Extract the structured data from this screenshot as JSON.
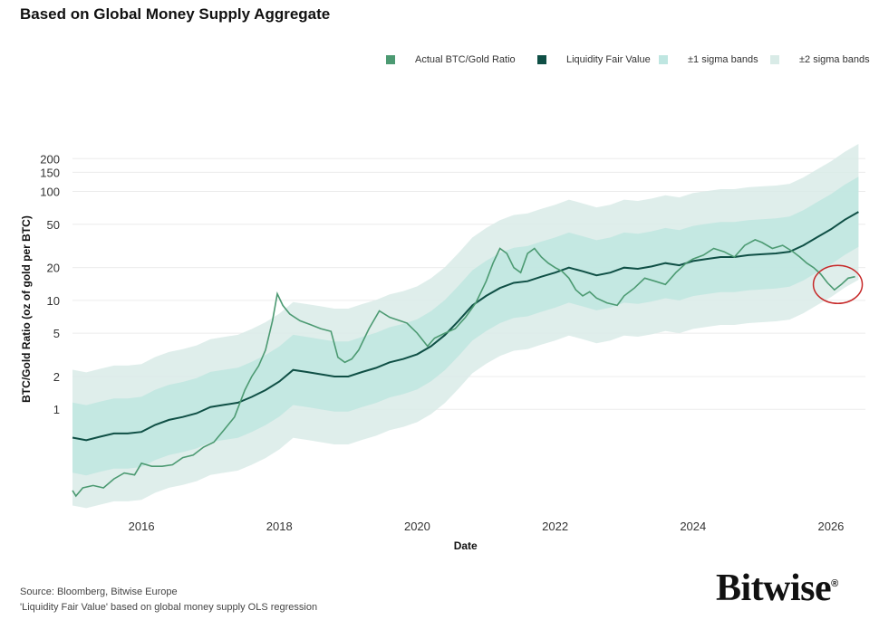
{
  "title": "Based on Global Money Supply Aggregate",
  "legend": [
    {
      "label": "Actual BTC/Gold Ratio",
      "color": "#4c9a72",
      "icon": "square-swatch"
    },
    {
      "label": "Liquidity Fair Value",
      "color": "#0f4f45",
      "icon": "square-swatch"
    },
    {
      "label": "±1 sigma bands",
      "color": "#bfe6e1",
      "icon": "square-swatch"
    },
    {
      "label": "±2 sigma bands",
      "color": "#d9ebe7",
      "icon": "square-swatch"
    }
  ],
  "footer": {
    "source": "Source: Bloomberg, Bitwise Europe",
    "note": "'Liquidity Fair Value' based on global money supply OLS regression",
    "logo": "Bitwise",
    "logo_mark": "®"
  },
  "chart_data": {
    "type": "line",
    "xlabel": "Date",
    "ylabel": "BTC/Gold Ratio (oz of gold per BTC)",
    "y_scale": "log",
    "grid": true,
    "legend_placement": "top-right",
    "xlim": [
      2015.0,
      2026.5
    ],
    "ylim": [
      0.14,
      230
    ],
    "x_ticks": [
      2016,
      2018,
      2020,
      2022,
      2024,
      2026
    ],
    "y_ticks": [
      1,
      2,
      5,
      10,
      20,
      50,
      100,
      150,
      200
    ],
    "series": [
      {
        "name": "Actual BTC/Gold Ratio",
        "color": "#4c9a72",
        "x": [
          2015.0,
          2015.05,
          2015.15,
          2015.3,
          2015.45,
          2015.6,
          2015.75,
          2015.9,
          2016.0,
          2016.15,
          2016.3,
          2016.45,
          2016.6,
          2016.75,
          2016.9,
          2017.05,
          2017.2,
          2017.35,
          2017.5,
          2017.6,
          2017.7,
          2017.8,
          2017.9,
          2017.97,
          2018.05,
          2018.15,
          2018.3,
          2018.45,
          2018.6,
          2018.75,
          2018.85,
          2018.95,
          2019.05,
          2019.15,
          2019.3,
          2019.45,
          2019.6,
          2019.75,
          2019.85,
          2020.0,
          2020.15,
          2020.25,
          2020.4,
          2020.55,
          2020.7,
          2020.85,
          2021.0,
          2021.1,
          2021.2,
          2021.3,
          2021.4,
          2021.5,
          2021.6,
          2021.7,
          2021.8,
          2021.9,
          2022.0,
          2022.1,
          2022.2,
          2022.3,
          2022.4,
          2022.5,
          2022.6,
          2022.75,
          2022.9,
          2023.0,
          2023.15,
          2023.3,
          2023.45,
          2023.6,
          2023.75,
          2023.9,
          2024.0,
          2024.15,
          2024.3,
          2024.45,
          2024.6,
          2024.75,
          2024.9,
          2025.0,
          2025.15,
          2025.3,
          2025.45,
          2025.55,
          2025.65,
          2025.75,
          2025.85,
          2025.95,
          2026.05,
          2026.15,
          2026.25,
          2026.35
        ],
        "y": [
          0.18,
          0.16,
          0.19,
          0.2,
          0.19,
          0.23,
          0.26,
          0.25,
          0.32,
          0.3,
          0.3,
          0.31,
          0.36,
          0.38,
          0.45,
          0.5,
          0.65,
          0.85,
          1.5,
          2.0,
          2.5,
          3.5,
          6.5,
          11.5,
          9.0,
          7.5,
          6.5,
          6.0,
          5.5,
          5.2,
          3.0,
          2.7,
          2.9,
          3.5,
          5.5,
          8.0,
          7.0,
          6.5,
          6.2,
          5.0,
          3.8,
          4.5,
          5.0,
          5.5,
          7.0,
          9.5,
          15.0,
          22.0,
          30.0,
          27.0,
          20.0,
          18.0,
          27.0,
          30.0,
          25.0,
          22.0,
          20.0,
          18.5,
          16.0,
          12.5,
          11.0,
          12.0,
          10.5,
          9.5,
          9.0,
          11.0,
          13.0,
          16.0,
          15.0,
          14.0,
          18.0,
          22.0,
          24.0,
          26.0,
          30.0,
          28.0,
          25.0,
          32.0,
          36.0,
          34.0,
          30.0,
          32.0,
          28.0,
          25.0,
          22.0,
          20.0,
          17.5,
          14.5,
          12.5,
          14.0,
          16.0,
          16.5
        ]
      },
      {
        "name": "Liquidity Fair Value",
        "color": "#0f4f45",
        "x": [
          2015.0,
          2015.2,
          2015.4,
          2015.6,
          2015.8,
          2016.0,
          2016.2,
          2016.4,
          2016.6,
          2016.8,
          2017.0,
          2017.2,
          2017.4,
          2017.6,
          2017.8,
          2018.0,
          2018.2,
          2018.4,
          2018.6,
          2018.8,
          2019.0,
          2019.2,
          2019.4,
          2019.6,
          2019.8,
          2020.0,
          2020.2,
          2020.4,
          2020.6,
          2020.8,
          2021.0,
          2021.2,
          2021.4,
          2021.6,
          2021.8,
          2022.0,
          2022.2,
          2022.4,
          2022.6,
          2022.8,
          2023.0,
          2023.2,
          2023.4,
          2023.6,
          2023.8,
          2024.0,
          2024.2,
          2024.4,
          2024.6,
          2024.8,
          2025.0,
          2025.2,
          2025.4,
          2025.6,
          2025.8,
          2026.0,
          2026.2,
          2026.4
        ],
        "y": [
          0.55,
          0.52,
          0.56,
          0.6,
          0.6,
          0.62,
          0.72,
          0.8,
          0.85,
          0.92,
          1.05,
          1.1,
          1.15,
          1.3,
          1.5,
          1.8,
          2.3,
          2.2,
          2.1,
          2.0,
          2.0,
          2.2,
          2.4,
          2.7,
          2.9,
          3.2,
          3.8,
          4.8,
          6.5,
          9.0,
          11.0,
          13.0,
          14.5,
          15.0,
          16.5,
          18.0,
          20.0,
          18.5,
          17.0,
          18.0,
          20.0,
          19.5,
          20.5,
          22.0,
          21.0,
          23.0,
          24.0,
          25.0,
          25.0,
          26.0,
          26.5,
          27.0,
          28.0,
          32.0,
          38.0,
          45.0,
          55.0,
          65.0
        ]
      },
      {
        "name": "±1 sigma bands",
        "color": "#bfe6e1",
        "type": "band",
        "factor": 2.1
      },
      {
        "name": "±2 sigma bands",
        "color": "#d9ebe7",
        "type": "band",
        "factor": 4.2
      }
    ],
    "annotations": [
      {
        "type": "circle",
        "color": "#c62828",
        "x": 2026.1,
        "y": 14
      }
    ]
  }
}
